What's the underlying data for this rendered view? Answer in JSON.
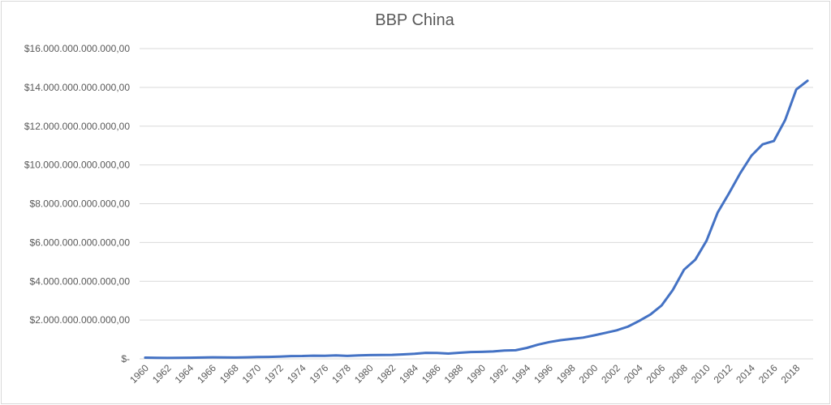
{
  "chart_data": {
    "type": "line",
    "title": "BBP China",
    "xlabel": "",
    "ylabel": "",
    "ylim": [
      0,
      16000000000000
    ],
    "y_ticks": [
      {
        "value": 0,
        "label": "$-"
      },
      {
        "value": 2000000000000,
        "label": "$2.000.000.000.000,00"
      },
      {
        "value": 4000000000000,
        "label": "$4.000.000.000.000,00"
      },
      {
        "value": 6000000000000,
        "label": "$6.000.000.000.000,00"
      },
      {
        "value": 8000000000000,
        "label": "$8.000.000.000.000,00"
      },
      {
        "value": 10000000000000,
        "label": "$10.000.000.000.000,00"
      },
      {
        "value": 12000000000000,
        "label": "$12.000.000.000.000,00"
      },
      {
        "value": 14000000000000,
        "label": "$14.000.000.000.000,00"
      },
      {
        "value": 16000000000000,
        "label": "$16.000.000.000.000,00"
      }
    ],
    "x_tick_labels": [
      "1960",
      "1962",
      "1964",
      "1966",
      "1968",
      "1970",
      "1972",
      "1974",
      "1976",
      "1978",
      "1980",
      "1982",
      "1984",
      "1986",
      "1988",
      "1990",
      "1992",
      "1994",
      "1996",
      "1998",
      "2000",
      "2002",
      "2004",
      "2006",
      "2008",
      "2010",
      "2012",
      "2014",
      "2016",
      "2018"
    ],
    "grid": true,
    "legend": "none",
    "line_color": "#4472c4",
    "x": [
      1960,
      1961,
      1962,
      1963,
      1964,
      1965,
      1966,
      1967,
      1968,
      1969,
      1970,
      1971,
      1972,
      1973,
      1974,
      1975,
      1976,
      1977,
      1978,
      1979,
      1980,
      1981,
      1982,
      1983,
      1984,
      1985,
      1986,
      1987,
      1988,
      1989,
      1990,
      1991,
      1992,
      1993,
      1994,
      1995,
      1996,
      1997,
      1998,
      1999,
      2000,
      2001,
      2002,
      2003,
      2004,
      2005,
      2006,
      2007,
      2008,
      2009,
      2010,
      2011,
      2012,
      2013,
      2014,
      2015,
      2016,
      2017,
      2018,
      2019
    ],
    "series": [
      {
        "values": [
          60000000000,
          50000000000,
          47000000000,
          50000000000,
          59000000000,
          70000000000,
          76000000000,
          72000000000,
          70000000000,
          79000000000,
          92000000000,
          100000000000,
          114000000000,
          139000000000,
          144000000000,
          163000000000,
          154000000000,
          175000000000,
          149000000000,
          178000000000,
          191000000000,
          196000000000,
          205000000000,
          230000000000,
          260000000000,
          309000000000,
          301000000000,
          272000000000,
          312000000000,
          348000000000,
          361000000000,
          383000000000,
          427000000000,
          445000000000,
          564000000000,
          734000000000,
          864000000000,
          962000000000,
          1029000000000,
          1094000000000,
          1211000000000,
          1339000000000,
          1471000000000,
          1660000000000,
          1955000000000,
          2286000000000,
          2752000000000,
          3552000000000,
          4598000000000,
          5110000000000,
          6087000000000,
          7552000000000,
          8532000000000,
          9570000000000,
          10475000000000,
          11062000000000,
          11233000000000,
          12310000000000,
          13895000000000,
          14343000000000
        ]
      }
    ]
  }
}
